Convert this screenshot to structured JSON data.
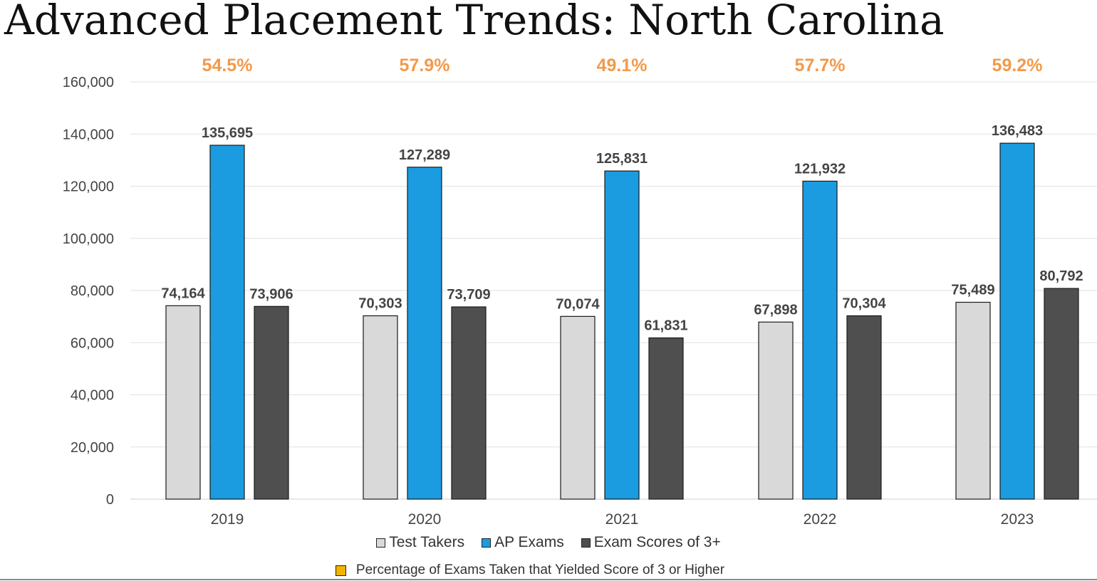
{
  "title": "Advanced Placement Trends: North Carolina",
  "chart_data": {
    "type": "bar",
    "title": "Advanced Placement Trends: North Carolina",
    "categories": [
      "2019",
      "2020",
      "2021",
      "2022",
      "2023"
    ],
    "series": [
      {
        "name": "Test Takers",
        "color": "#d9d9d9",
        "values": [
          74164,
          70303,
          70074,
          67898,
          75489
        ],
        "labels": [
          "74,164",
          "70,303",
          "70,074",
          "67,898",
          "75,489"
        ]
      },
      {
        "name": "AP Exams",
        "color": "#1b9ce0",
        "values": [
          135695,
          127289,
          125831,
          121932,
          136483
        ],
        "labels": [
          "135,695",
          "127,289",
          "125,831",
          "121,932",
          "136,483"
        ]
      },
      {
        "name": "Exam Scores of 3+",
        "color": "#4f4f4f",
        "values": [
          73906,
          73709,
          61831,
          70304,
          80792
        ],
        "labels": [
          "73,906",
          "73,709",
          "61,831",
          "70,304",
          "80,792"
        ]
      }
    ],
    "percentages": {
      "name": "Percentage of Exams Taken that Yielded Score of 3 or Higher",
      "color": "#f0a030",
      "values": [
        "54.5%",
        "57.9%",
        "49.1%",
        "57.7%",
        "59.2%"
      ]
    },
    "ylim": [
      0,
      160000
    ],
    "yticks": [
      "0",
      "20,000",
      "40,000",
      "60,000",
      "80,000",
      "100,000",
      "120,000",
      "140,000",
      "160,000"
    ],
    "grid": true,
    "legend_position": "bottom"
  },
  "legend": {
    "test_takers": "Test Takers",
    "ap_exams": "AP Exams",
    "scores": "Exam Scores of 3+",
    "percentage": "Percentage of Exams Taken that Yielded Score of 3 or Higher"
  },
  "colors": {
    "test_takers": "#d9d9d9",
    "ap_exams": "#1b9ce0",
    "scores": "#4f4f4f",
    "percentage": "#f0b400",
    "percent_text": "#f39a4a"
  }
}
